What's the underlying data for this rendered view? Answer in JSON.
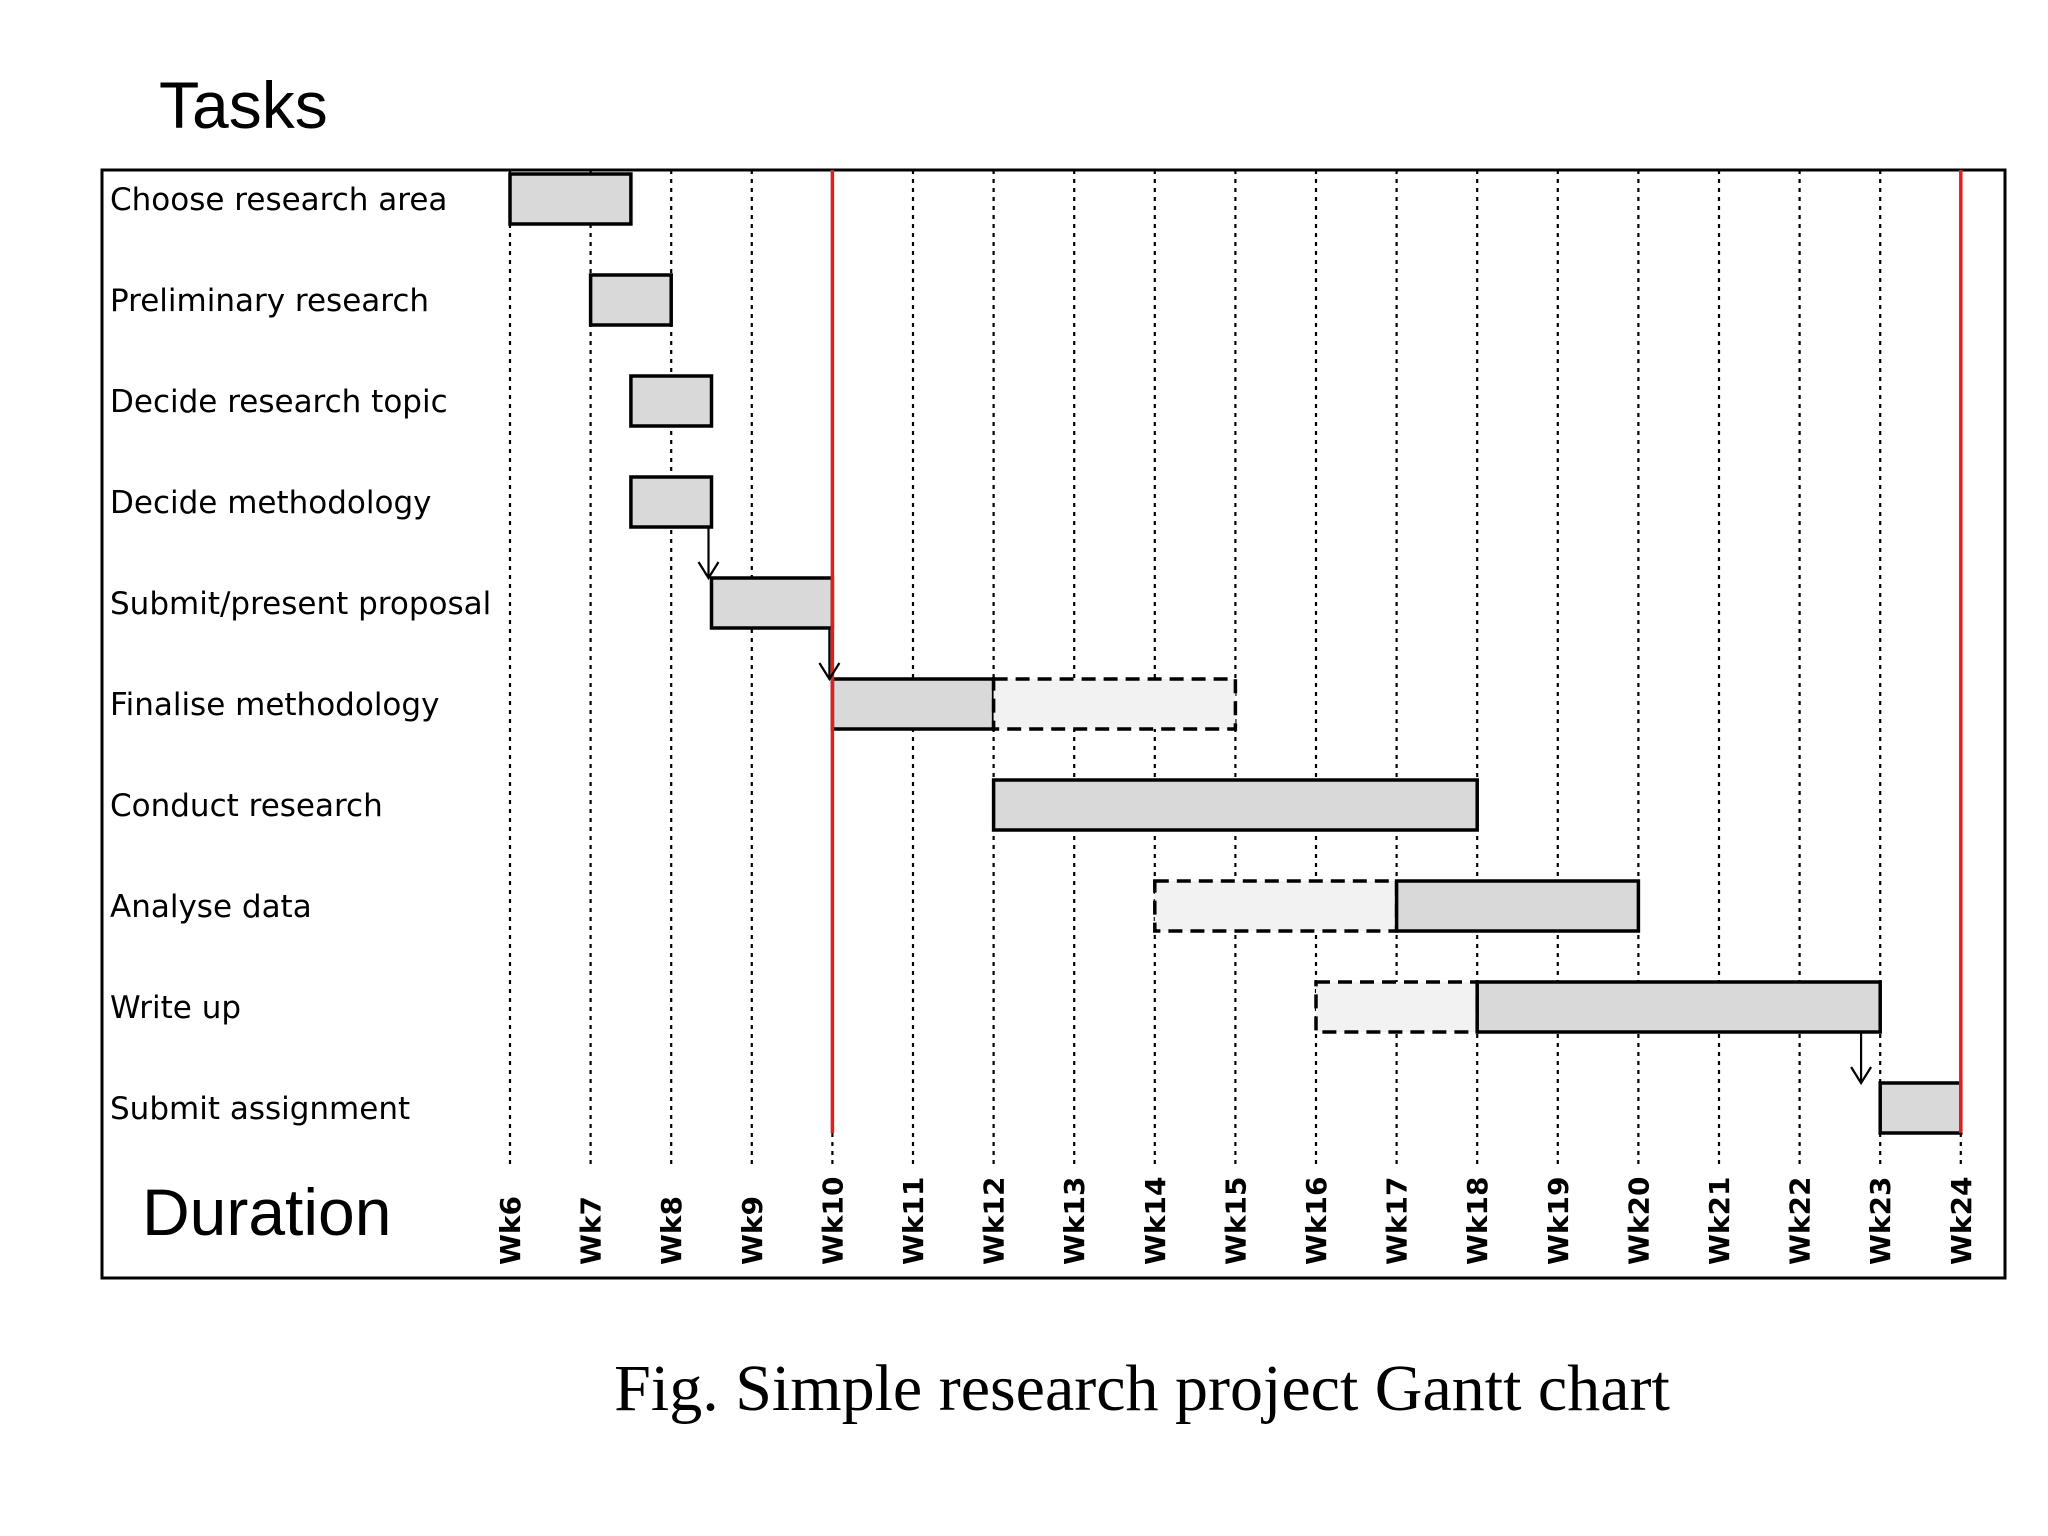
{
  "chart_data": {
    "type": "gantt",
    "title": "Tasks",
    "xlabel": "Duration",
    "caption": "Fig. Simple research project Gantt chart",
    "weeks": [
      "Wk6",
      "Wk7",
      "Wk8",
      "Wk9",
      "Wk10",
      "Wk11",
      "Wk12",
      "Wk13",
      "Wk14",
      "Wk15",
      "Wk16",
      "Wk17",
      "Wk18",
      "Wk19",
      "Wk20",
      "Wk21",
      "Wk22",
      "Wk23",
      "Wk24"
    ],
    "milestones": [
      10,
      24
    ],
    "tasks": [
      {
        "name": "Choose research area",
        "segments": [
          {
            "start": 6,
            "end": 7.5,
            "style": "planned"
          }
        ]
      },
      {
        "name": "Preliminary research",
        "segments": [
          {
            "start": 7,
            "end": 8,
            "style": "planned"
          }
        ]
      },
      {
        "name": "Decide research topic",
        "segments": [
          {
            "start": 7.5,
            "end": 8.5,
            "style": "planned"
          }
        ]
      },
      {
        "name": "Decide methodology",
        "segments": [
          {
            "start": 7.5,
            "end": 8.5,
            "style": "planned"
          }
        ]
      },
      {
        "name": "Submit/present proposal",
        "segments": [
          {
            "start": 8.5,
            "end": 10,
            "style": "planned"
          }
        ]
      },
      {
        "name": "Finalise methodology",
        "segments": [
          {
            "start": 10,
            "end": 12,
            "style": "planned"
          },
          {
            "start": 12,
            "end": 15,
            "style": "flexible"
          }
        ]
      },
      {
        "name": "Conduct research",
        "segments": [
          {
            "start": 12,
            "end": 18,
            "style": "planned"
          }
        ]
      },
      {
        "name": "Analyse data",
        "segments": [
          {
            "start": 14,
            "end": 17,
            "style": "flexible"
          },
          {
            "start": 17,
            "end": 20,
            "style": "planned"
          }
        ]
      },
      {
        "name": "Write up",
        "segments": [
          {
            "start": 16,
            "end": 18,
            "style": "flexible"
          },
          {
            "start": 18,
            "end": 23,
            "style": "planned"
          }
        ]
      },
      {
        "name": "Submit assignment",
        "segments": [
          {
            "start": 23,
            "end": 24,
            "style": "planned"
          }
        ]
      }
    ],
    "dependencies": [
      {
        "from_task": 3,
        "to_task": 4,
        "week": 8.5
      },
      {
        "from_task": 4,
        "to_task": 5,
        "week": 10
      },
      {
        "from_task": 8,
        "to_task": 9,
        "week": 22.8
      }
    ],
    "colors": {
      "planned_fill": "#d9d9d9",
      "flexible_fill": "#f2f2f2",
      "milestone_line": "#e02020",
      "border": "#000000"
    }
  }
}
